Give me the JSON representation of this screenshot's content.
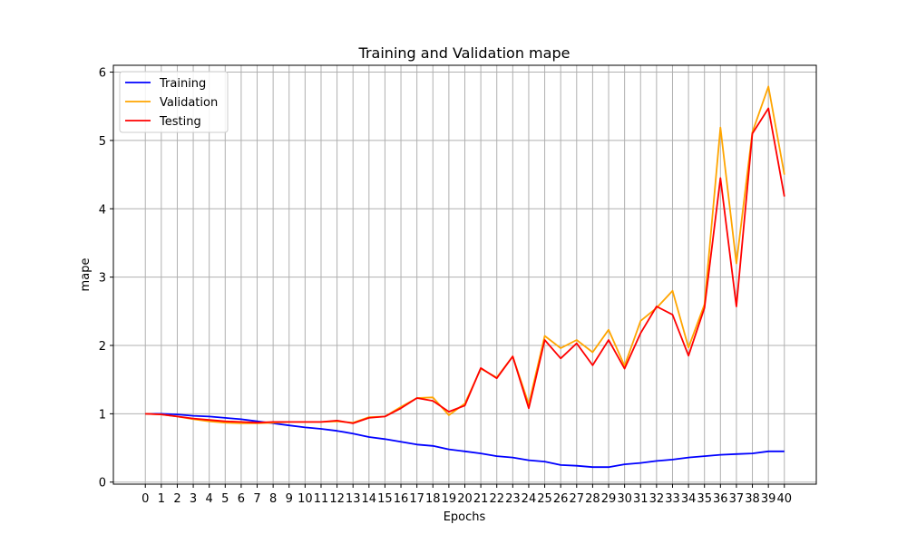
{
  "chart_data": {
    "type": "line",
    "title": "Training and Validation mape",
    "xlabel": "Epochs",
    "ylabel": "mape",
    "x": [
      0,
      1,
      2,
      3,
      4,
      5,
      6,
      7,
      8,
      9,
      10,
      11,
      12,
      13,
      14,
      15,
      16,
      17,
      18,
      19,
      20,
      21,
      22,
      23,
      24,
      25,
      26,
      27,
      28,
      29,
      30,
      31,
      32,
      33,
      34,
      35,
      36,
      37,
      38,
      39,
      40
    ],
    "xlim": [
      -2,
      42
    ],
    "ylim": [
      -0.03,
      6.1
    ],
    "yticks": [
      0,
      1,
      2,
      3,
      4,
      5,
      6
    ],
    "grid": true,
    "legend_position": "top-left",
    "series": [
      {
        "name": "Training",
        "color": "#0000ff",
        "values": [
          1.0,
          1.0,
          0.99,
          0.97,
          0.96,
          0.94,
          0.92,
          0.89,
          0.86,
          0.83,
          0.8,
          0.78,
          0.75,
          0.71,
          0.66,
          0.63,
          0.59,
          0.55,
          0.53,
          0.48,
          0.45,
          0.42,
          0.38,
          0.36,
          0.32,
          0.3,
          0.25,
          0.24,
          0.22,
          0.22,
          0.26,
          0.28,
          0.31,
          0.33,
          0.36,
          0.38,
          0.4,
          0.41,
          0.42,
          0.45,
          0.45
        ]
      },
      {
        "name": "Validation",
        "color": "#ffa500",
        "values": [
          1.0,
          0.99,
          0.96,
          0.92,
          0.89,
          0.87,
          0.86,
          0.86,
          0.87,
          0.88,
          0.88,
          0.88,
          0.89,
          0.87,
          0.95,
          0.96,
          1.1,
          1.23,
          1.24,
          0.98,
          1.15,
          1.66,
          1.53,
          1.84,
          1.14,
          2.14,
          1.96,
          2.08,
          1.9,
          2.23,
          1.7,
          2.36,
          2.55,
          2.8,
          1.97,
          2.6,
          5.19,
          3.2,
          5.12,
          5.79,
          4.5
        ]
      },
      {
        "name": "Testing",
        "color": "#ff0000",
        "values": [
          1.0,
          0.99,
          0.96,
          0.93,
          0.91,
          0.89,
          0.88,
          0.87,
          0.88,
          0.88,
          0.88,
          0.88,
          0.9,
          0.86,
          0.94,
          0.96,
          1.08,
          1.23,
          1.19,
          1.03,
          1.12,
          1.67,
          1.52,
          1.84,
          1.08,
          2.08,
          1.81,
          2.03,
          1.71,
          2.08,
          1.66,
          2.18,
          2.57,
          2.45,
          1.85,
          2.55,
          4.45,
          2.57,
          5.1,
          5.47,
          4.18
        ]
      }
    ]
  }
}
